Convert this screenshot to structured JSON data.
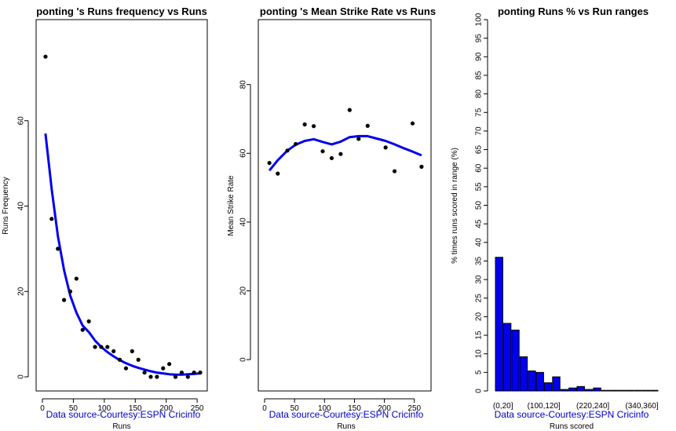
{
  "chart_data": [
    {
      "type": "scatter",
      "title": "ponting 's  Runs frequency vs Runs",
      "xlabel": "Runs",
      "ylabel": "Runs Frequency",
      "source_note": "Data source-Courtesy:ESPN Cricinfo",
      "xlim": [
        0,
        260
      ],
      "ylim": [
        0,
        80
      ],
      "x_ticks": [
        "0",
        "50",
        "100",
        "150",
        "200",
        "250"
      ],
      "y_ticks": [
        "0",
        "20",
        "40",
        "60"
      ],
      "points": {
        "x": [
          5,
          15,
          25,
          35,
          45,
          55,
          65,
          75,
          85,
          95,
          105,
          115,
          125,
          135,
          145,
          155,
          165,
          175,
          185,
          195,
          205,
          215,
          225,
          235,
          245,
          255
        ],
        "y": [
          75,
          37,
          30,
          18,
          20,
          23,
          11,
          13,
          7,
          7,
          7,
          6,
          4,
          2,
          6,
          4,
          1,
          0,
          0,
          2,
          3,
          0,
          1,
          0,
          1,
          1
        ]
      },
      "fit_line": {
        "color": "#0000ee",
        "x": [
          5,
          15,
          25,
          35,
          45,
          55,
          65,
          75,
          85,
          95,
          105,
          115,
          125,
          135,
          145,
          155,
          165,
          175,
          185,
          195,
          205,
          215,
          225,
          235,
          245,
          255
        ],
        "y": [
          57,
          44,
          33,
          25,
          19,
          15,
          12,
          10.5,
          8.5,
          7,
          5.8,
          4.8,
          3.9,
          3.2,
          2.6,
          2.1,
          1.7,
          1.3,
          1.0,
          0.8,
          0.6,
          0.5,
          0.5,
          0.6,
          0.7,
          0.8
        ]
      },
      "grid": false
    },
    {
      "type": "scatter",
      "title": "ponting 's Mean Strike Rate vs Runs",
      "xlabel": "Runs",
      "ylabel": "Mean Strike Rate",
      "source_note": "Data source-Courtesy:ESPN Cricinfo",
      "xlim": [
        0,
        270
      ],
      "ylim": [
        -5,
        95
      ],
      "x_ticks": [
        "0",
        "50",
        "100",
        "150",
        "200",
        "250"
      ],
      "y_ticks": [
        "0",
        "20",
        "40",
        "60",
        "80"
      ],
      "points": {
        "x": [
          8,
          22,
          38,
          52,
          67,
          82,
          97,
          112,
          127,
          142,
          157,
          172,
          202,
          217,
          247,
          262
        ],
        "y": [
          57.2,
          54.1,
          60.8,
          62.7,
          68.4,
          67.9,
          60.6,
          58.6,
          59.8,
          72.6,
          64.2,
          68.0,
          61.7,
          54.8,
          68.7,
          56.1
        ]
      },
      "fit_line": {
        "color": "#0000ee",
        "x": [
          8,
          22,
          38,
          52,
          67,
          82,
          97,
          112,
          127,
          142,
          157,
          172,
          187,
          202,
          217,
          232,
          247,
          262
        ],
        "y": [
          55.0,
          58.0,
          60.8,
          62.5,
          63.6,
          64.1,
          63.3,
          62.6,
          63.4,
          64.7,
          65.0,
          65.0,
          64.3,
          63.6,
          62.6,
          61.5,
          60.5,
          59.4
        ]
      },
      "grid": false
    },
    {
      "type": "bar",
      "title": "ponting Runs %  vs Run ranges",
      "xlabel": "Runs scored",
      "ylabel": "% times runs scored in range (%)",
      "source_note": "Data source-Courtesy:ESPN Cricinfo",
      "ylim": [
        0,
        100
      ],
      "y_ticks": [
        "0",
        "5",
        "10",
        "15",
        "20",
        "25",
        "30",
        "35",
        "40",
        "45",
        "50",
        "55",
        "60",
        "65",
        "70",
        "75",
        "80",
        "85",
        "90",
        "95",
        "100"
      ],
      "categories": [
        "(0,20]",
        "(20,40]",
        "(40,60]",
        "(60,80]",
        "(80,100]",
        "(100,120]",
        "(120,140]",
        "(140,160]",
        "(160,180]",
        "(180,200]",
        "(200,220]",
        "(220,240]",
        "(240,260]",
        "(260,280]",
        "(280,300]",
        "(300,320]",
        "(320,340]",
        "(340,360]",
        "(360,380]",
        "(380,400]"
      ],
      "visible_category_labels": [
        "(0,20]",
        "(100,120]",
        "(220,240]",
        "(340,360]"
      ],
      "values": [
        36,
        18.2,
        16.4,
        9.2,
        5.4,
        5.0,
        2.2,
        3.8,
        0.4,
        0.8,
        1.2,
        0.4,
        0.8,
        0,
        0,
        0,
        0,
        0,
        0,
        0
      ],
      "bar_color": "#0000ee",
      "grid": false
    }
  ]
}
